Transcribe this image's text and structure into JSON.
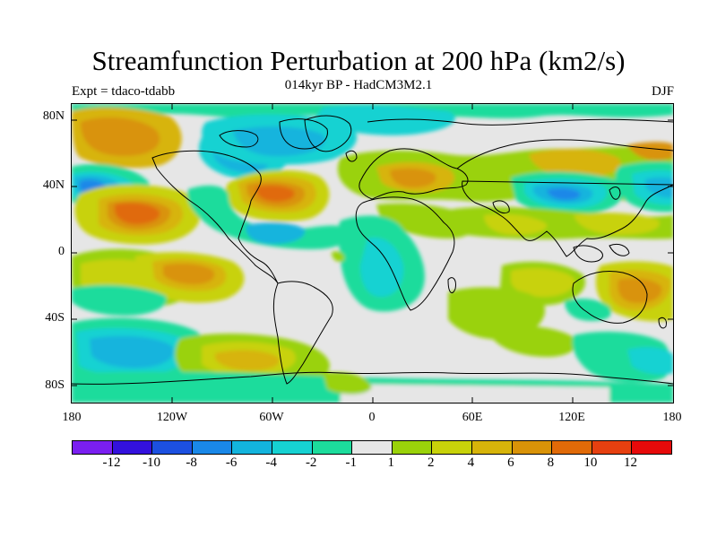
{
  "title": "Streamfunction Perturbation at 200 hPa (km2/s)",
  "subtitle": "014kyr BP - HadCM3M2.1",
  "left_label": "Expt = tdaco-tdabb",
  "right_label": "DJF",
  "y_axis": [
    "80N",
    "40N",
    "0",
    "40S",
    "80S"
  ],
  "x_axis": [
    "180",
    "120W",
    "60W",
    "0",
    "60E",
    "120E",
    "180"
  ],
  "colorbar": {
    "colors": [
      "#7a1ff0",
      "#3311dd",
      "#1c50e0",
      "#1a88e8",
      "#13b4dd",
      "#16d2d2",
      "#1cdc9c",
      "#e6e6e6",
      "#9ad20a",
      "#c8d20a",
      "#d7b40a",
      "#d99308",
      "#e06a08",
      "#e64010",
      "#e60a0a"
    ],
    "labels": [
      "-12",
      "-10",
      "-8",
      "-6",
      "-4",
      "-2",
      "-1",
      "1",
      "2",
      "4",
      "6",
      "8",
      "10",
      "12"
    ]
  }
}
